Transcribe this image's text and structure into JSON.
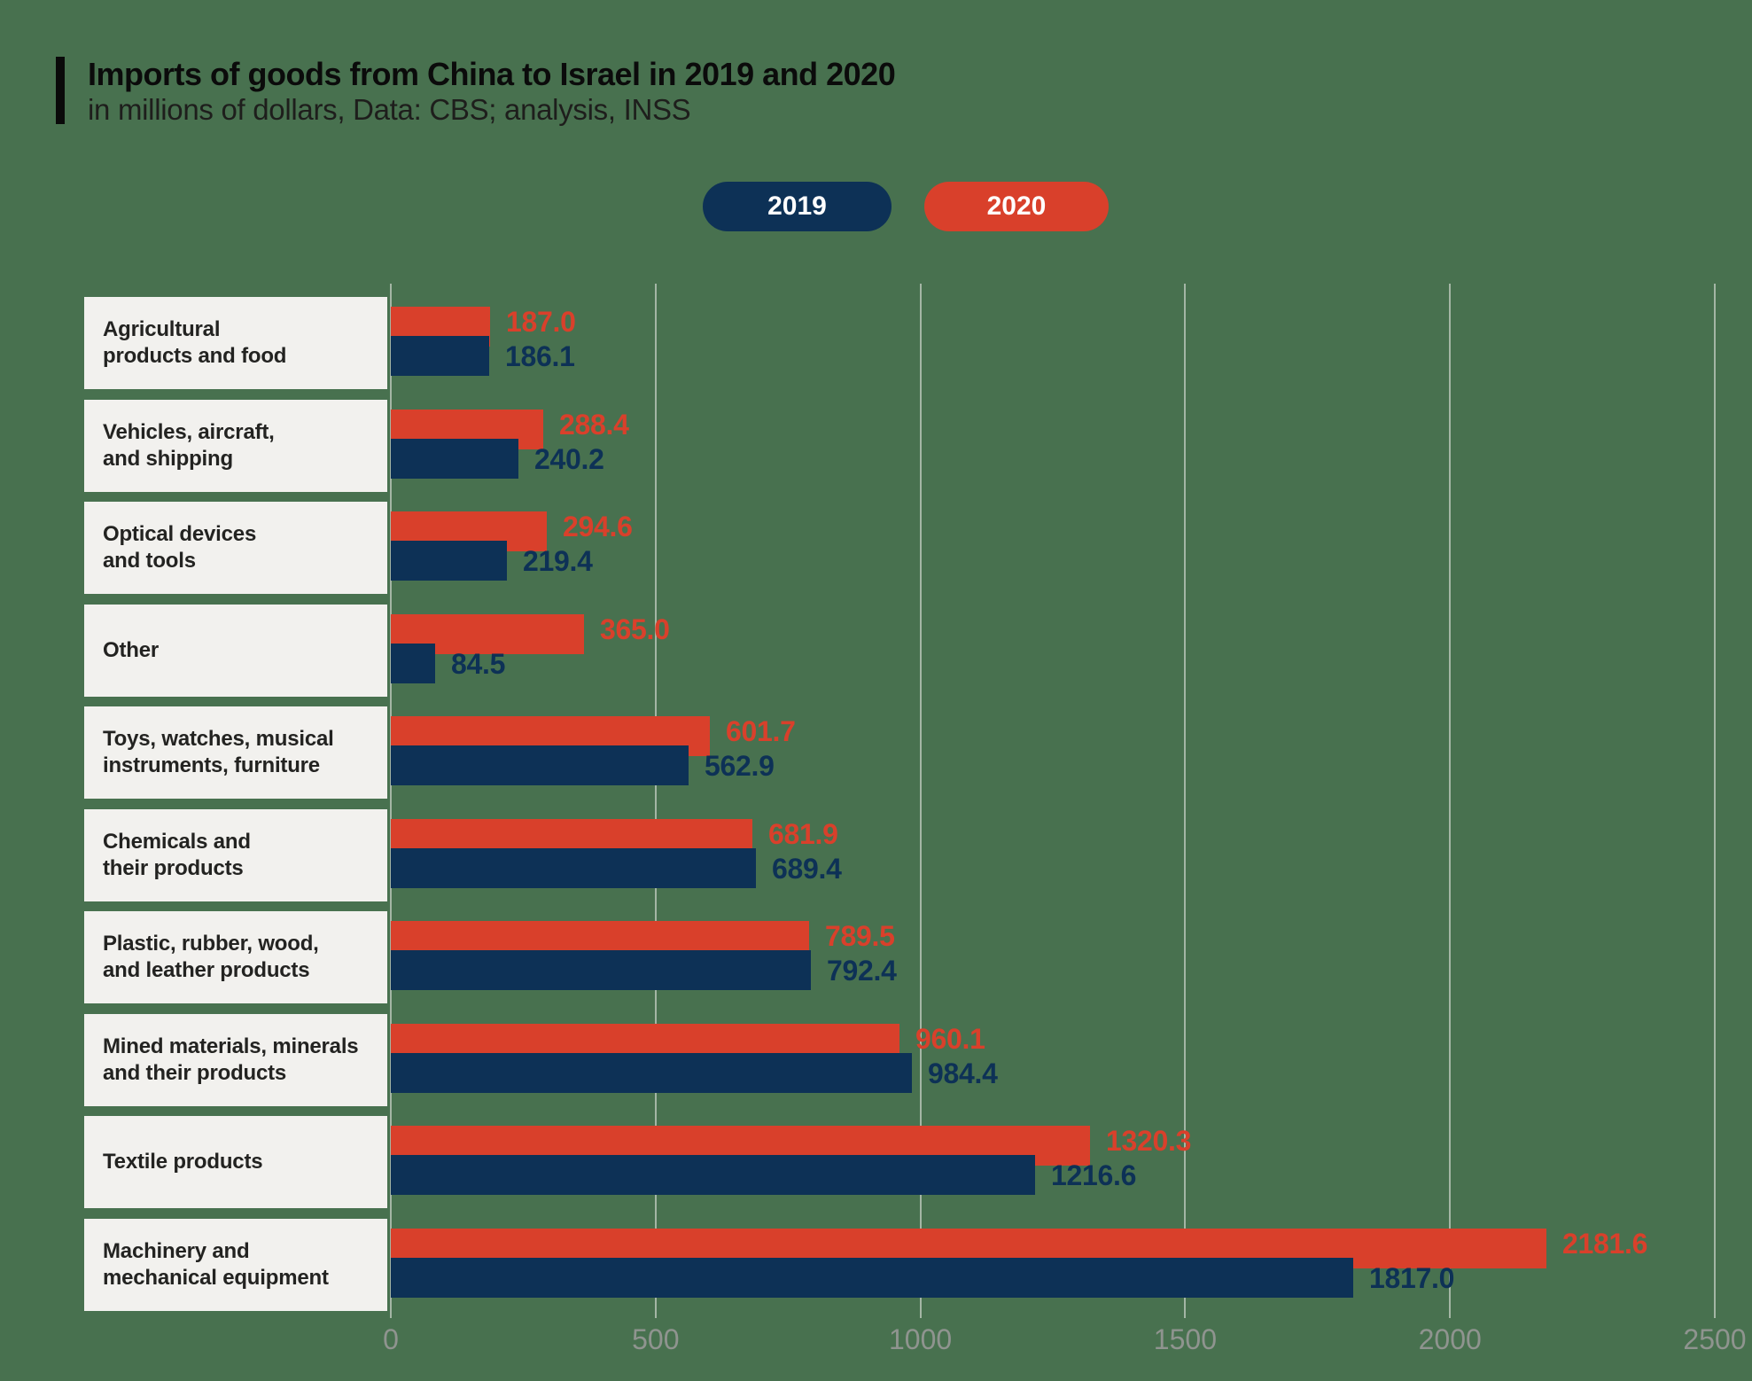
{
  "header": {
    "title": "Imports of goods from China to Israel in 2019 and 2020",
    "subtitle": "in millions of dollars, Data: CBS; analysis, INSS"
  },
  "legend": {
    "items": [
      {
        "label": "2019"
      },
      {
        "label": "2020"
      }
    ],
    "position": "top-center"
  },
  "colors": {
    "background_green": "#48714f",
    "navy_2019": "#0d3156",
    "red_2020": "#d9402b",
    "label_box_bg": "#f2f1ee",
    "category_text": "#232321",
    "axis_text": "#8f948f",
    "gridline": "#dde1da",
    "title_text": "#0b0b0b",
    "legend_text": "#ffffff"
  },
  "chart_data": {
    "type": "bar",
    "orientation": "horizontal",
    "title": "Imports of goods from China to Israel in 2019 and 2020",
    "subtitle": "in millions of dollars, Data: CBS; analysis, INSS",
    "categories": [
      "Agricultural\nproducts and food",
      "Vehicles, aircraft,\nand shipping",
      "Optical devices\nand tools",
      "Other",
      "Toys, watches, musical\ninstruments, furniture",
      "Chemicals and\ntheir products",
      "Plastic, rubber, wood,\nand leather products",
      "Mined materials, minerals\nand their products",
      "Textile products",
      "Machinery and\nmechanical equipment"
    ],
    "series": [
      {
        "name": "2019",
        "color": "#0d3156",
        "values": [
          186.1,
          240.2,
          219.4,
          84.5,
          562.9,
          689.4,
          792.4,
          984.4,
          1216.6,
          1817.0
        ]
      },
      {
        "name": "2020",
        "color": "#d9402b",
        "values": [
          187.0,
          288.4,
          294.6,
          365.0,
          601.7,
          681.9,
          789.5,
          960.1,
          1320.3,
          2181.6
        ]
      }
    ],
    "bar_order_top_to_bottom": [
      "2020",
      "2019"
    ],
    "value_labels": "one_decimal_right_of_bar",
    "xlim": [
      0,
      2500
    ],
    "xticks": [
      0,
      500,
      1000,
      1500,
      2000,
      2500
    ],
    "grid": true,
    "legend_position": "top-center"
  }
}
